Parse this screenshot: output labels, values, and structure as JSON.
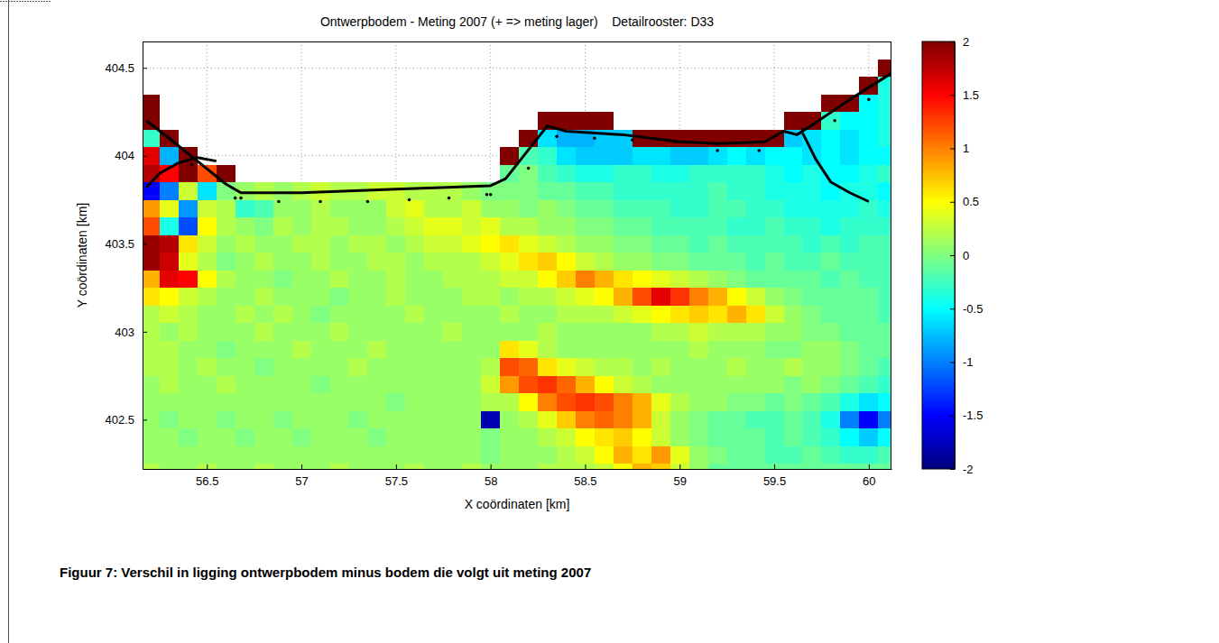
{
  "chart_data": {
    "type": "heatmap",
    "title": "Ontwerpbodem - Meting 2007 (+ => meting lager)    Detailrooster: D33",
    "x_label": "X coördinaten [km]",
    "y_label": "Y coördinaten [km]",
    "caption": "Figuur 7: Verschil in ligging ontwerpbodem minus bodem die volgt uit meting 2007",
    "xlim": [
      56.16,
      60.12
    ],
    "ylim": [
      402.22,
      404.65
    ],
    "xticks": [
      56.5,
      57,
      57.5,
      58,
      58.5,
      59,
      59.5,
      60
    ],
    "yticks": [
      402.5,
      403,
      403.5,
      404,
      404.5
    ],
    "grid": true,
    "colorbar": {
      "lim": [
        -2,
        2
      ],
      "ticks": [
        -2,
        -1.5,
        -1,
        -0.5,
        0,
        0.5,
        1,
        1.5,
        2
      ]
    },
    "x": [
      56.2,
      56.3,
      56.4,
      56.5,
      56.6,
      56.7,
      56.8,
      56.9,
      57.0,
      57.1,
      57.2,
      57.3,
      57.4,
      57.5,
      57.6,
      57.7,
      57.8,
      57.9,
      58.0,
      58.1,
      58.2,
      58.3,
      58.4,
      58.5,
      58.6,
      58.7,
      58.8,
      58.9,
      59.0,
      59.1,
      59.2,
      59.3,
      59.4,
      59.5,
      59.6,
      59.7,
      59.8,
      59.9,
      60.0,
      60.1
    ],
    "y": [
      404.6,
      404.5,
      404.4,
      404.3,
      404.2,
      404.1,
      404.0,
      403.9,
      403.8,
      403.7,
      403.6,
      403.5,
      403.4,
      403.3,
      403.2,
      403.1,
      403.0,
      402.9,
      402.8,
      402.7,
      402.6,
      402.5,
      402.4,
      402.3,
      402.2
    ],
    "z": [
      [
        null,
        null,
        null,
        null,
        null,
        null,
        null,
        null,
        null,
        null,
        null,
        null,
        null,
        null,
        null,
        null,
        null,
        null,
        null,
        null,
        null,
        null,
        null,
        null,
        null,
        null,
        null,
        null,
        null,
        null,
        null,
        null,
        null,
        null,
        null,
        null,
        null,
        null,
        null,
        null
      ],
      [
        null,
        null,
        null,
        null,
        null,
        null,
        null,
        null,
        null,
        null,
        null,
        null,
        null,
        null,
        null,
        null,
        null,
        null,
        null,
        null,
        null,
        null,
        null,
        null,
        null,
        null,
        null,
        null,
        null,
        null,
        null,
        null,
        null,
        null,
        null,
        null,
        null,
        null,
        null,
        2
      ],
      [
        null,
        null,
        null,
        null,
        null,
        null,
        null,
        null,
        null,
        null,
        null,
        null,
        null,
        null,
        null,
        null,
        null,
        null,
        null,
        null,
        null,
        null,
        null,
        null,
        null,
        null,
        null,
        null,
        null,
        null,
        null,
        null,
        null,
        null,
        null,
        null,
        null,
        null,
        2,
        -0.4
      ],
      [
        2,
        null,
        null,
        null,
        null,
        null,
        null,
        null,
        null,
        null,
        null,
        null,
        null,
        null,
        null,
        null,
        null,
        null,
        null,
        null,
        null,
        null,
        null,
        null,
        null,
        null,
        null,
        null,
        null,
        null,
        null,
        null,
        null,
        null,
        null,
        null,
        2,
        2,
        -0.5,
        -0.4
      ],
      [
        2,
        null,
        null,
        null,
        null,
        null,
        null,
        null,
        null,
        null,
        null,
        null,
        null,
        null,
        null,
        null,
        null,
        null,
        null,
        null,
        null,
        2,
        2,
        2,
        2,
        null,
        null,
        null,
        null,
        null,
        null,
        null,
        null,
        null,
        2,
        2,
        -0.3,
        -0.5,
        -0.5,
        -0.4
      ],
      [
        -0.3,
        2,
        null,
        null,
        null,
        null,
        null,
        null,
        null,
        null,
        null,
        null,
        null,
        null,
        null,
        null,
        null,
        null,
        null,
        null,
        2,
        -0.6,
        -0.8,
        -0.8,
        -0.7,
        -0.7,
        2,
        2,
        2,
        2,
        2,
        2,
        2,
        2,
        -0.7,
        -0.6,
        -0.5,
        -0.6,
        -0.5,
        -0.4
      ],
      [
        1.6,
        -0.8,
        2,
        null,
        null,
        null,
        null,
        null,
        null,
        null,
        null,
        null,
        null,
        null,
        null,
        null,
        null,
        null,
        null,
        2,
        -0.2,
        -0.3,
        -0.6,
        -0.7,
        -0.7,
        -0.7,
        -0.6,
        -0.6,
        -0.7,
        -0.7,
        -0.6,
        -0.5,
        -0.6,
        -0.5,
        -0.5,
        -0.6,
        -0.5,
        -0.6,
        -0.5,
        -0.5
      ],
      [
        1.8,
        1.5,
        2,
        1.2,
        2,
        null,
        null,
        null,
        null,
        null,
        null,
        null,
        null,
        null,
        null,
        null,
        null,
        null,
        null,
        -0.1,
        0.0,
        -0.2,
        -0.3,
        -0.4,
        -0.4,
        -0.3,
        -0.3,
        -0.4,
        -0.4,
        -0.3,
        -0.3,
        -0.3,
        -0.3,
        -0.4,
        -0.5,
        -0.4,
        -0.5,
        -0.5,
        -0.4,
        -0.3
      ],
      [
        -1.5,
        -1.0,
        0.3,
        -0.6,
        0.0,
        0.1,
        0.2,
        0.1,
        0.2,
        0.3,
        0.2,
        0.2,
        0.3,
        0.3,
        0.2,
        0.2,
        0.2,
        0.1,
        0.0,
        0.0,
        0.0,
        -0.1,
        -0.1,
        -0.2,
        -0.2,
        -0.3,
        -0.3,
        -0.3,
        -0.3,
        -0.3,
        -0.2,
        -0.3,
        -0.3,
        -0.4,
        -0.4,
        -0.4,
        -0.5,
        -0.4,
        -0.4,
        -0.5
      ],
      [
        0.9,
        0.4,
        -0.9,
        0.3,
        0.2,
        -0.3,
        -0.2,
        0.1,
        0.1,
        0.2,
        0.1,
        0.1,
        0.1,
        0.3,
        0.4,
        0.2,
        0.2,
        0.3,
        0.1,
        0.1,
        0.0,
        0.1,
        0.0,
        -0.1,
        -0.1,
        -0.2,
        -0.2,
        -0.2,
        -0.3,
        -0.3,
        -0.2,
        -0.2,
        -0.3,
        -0.3,
        -0.4,
        -0.4,
        -0.4,
        -0.4,
        -0.3,
        -0.4
      ],
      [
        1.2,
        -0.4,
        -1.2,
        0.5,
        0.2,
        0.1,
        0.0,
        0.2,
        0.1,
        0.2,
        0.2,
        0.1,
        0.1,
        0.2,
        0.3,
        0.4,
        0.4,
        0.3,
        0.4,
        0.2,
        0.2,
        0.1,
        0.1,
        0.0,
        0.0,
        -0.1,
        -0.1,
        -0.2,
        -0.2,
        -0.2,
        -0.2,
        -0.3,
        -0.3,
        -0.2,
        -0.3,
        -0.3,
        -0.4,
        -0.3,
        -0.3,
        -0.3
      ],
      [
        1.9,
        1.8,
        0.6,
        0.3,
        0.1,
        0.2,
        0.1,
        0.1,
        0.2,
        0.2,
        0.1,
        0.2,
        0.2,
        0.1,
        0.2,
        0.3,
        0.3,
        0.4,
        0.5,
        0.6,
        0.4,
        0.3,
        0.2,
        0.1,
        0.1,
        0.0,
        0.0,
        -0.1,
        -0.1,
        -0.2,
        -0.1,
        -0.2,
        -0.2,
        -0.2,
        -0.2,
        -0.3,
        -0.2,
        -0.3,
        -0.2,
        -0.2
      ],
      [
        1.9,
        1.7,
        0.4,
        0.2,
        0.0,
        0.1,
        0.2,
        0.1,
        0.1,
        0.2,
        0.1,
        0.1,
        0.2,
        0.2,
        0.1,
        0.2,
        0.2,
        0.2,
        0.3,
        0.4,
        0.6,
        0.7,
        0.5,
        0.3,
        0.2,
        0.1,
        0.1,
        0.0,
        0.0,
        -0.1,
        -0.1,
        -0.1,
        -0.2,
        -0.1,
        -0.2,
        -0.2,
        -0.1,
        -0.2,
        -0.2,
        -0.2
      ],
      [
        0.8,
        1.6,
        1.5,
        0.5,
        0.2,
        0.1,
        0.1,
        0.0,
        0.1,
        0.1,
        0.2,
        0.1,
        0.1,
        0.2,
        0.1,
        0.1,
        0.2,
        0.2,
        0.2,
        0.3,
        0.3,
        0.5,
        0.7,
        1.0,
        0.8,
        0.6,
        0.5,
        0.4,
        0.3,
        0.2,
        0.1,
        0.0,
        -0.1,
        -0.1,
        -0.1,
        -0.1,
        -0.2,
        -0.1,
        -0.2,
        -0.2
      ],
      [
        0.6,
        0.5,
        0.3,
        0.2,
        0.1,
        0.1,
        0.2,
        0.1,
        0.1,
        0.1,
        0.0,
        0.1,
        0.1,
        0.2,
        0.1,
        0.1,
        0.1,
        0.2,
        0.2,
        0.1,
        0.2,
        0.2,
        0.3,
        0.4,
        0.5,
        0.8,
        1.2,
        1.6,
        1.3,
        1.0,
        0.8,
        0.5,
        0.3,
        0.1,
        0.0,
        -0.1,
        -0.1,
        -0.1,
        -0.1,
        -0.2
      ],
      [
        0.2,
        0.3,
        0.2,
        0.1,
        0.1,
        0.2,
        0.1,
        0.2,
        0.1,
        0.0,
        0.1,
        0.1,
        0.1,
        0.1,
        0.2,
        0.1,
        0.1,
        0.1,
        0.1,
        0.2,
        0.1,
        0.1,
        0.2,
        0.2,
        0.2,
        0.3,
        0.4,
        0.5,
        0.6,
        0.7,
        0.6,
        0.8,
        0.6,
        0.3,
        0.1,
        0.0,
        -0.1,
        -0.1,
        -0.1,
        -0.2
      ],
      [
        0.2,
        0.1,
        0.2,
        0.1,
        0.1,
        0.1,
        0.2,
        0.1,
        0.1,
        0.1,
        0.2,
        0.1,
        0.1,
        0.1,
        0.1,
        0.1,
        0.2,
        0.1,
        0.1,
        0.1,
        0.1,
        0.2,
        0.1,
        0.1,
        0.1,
        0.1,
        0.1,
        0.2,
        0.2,
        0.3,
        0.2,
        0.2,
        0.2,
        0.1,
        0.1,
        0.0,
        0.0,
        -0.1,
        -0.1,
        -0.1
      ],
      [
        0.2,
        0.2,
        0.1,
        0.1,
        0.0,
        0.1,
        0.1,
        0.1,
        0.2,
        0.1,
        0.1,
        0.1,
        0.2,
        0.1,
        0.1,
        0.1,
        0.1,
        0.1,
        0.1,
        0.6,
        0.4,
        0.2,
        0.1,
        0.1,
        0.1,
        0.1,
        0.1,
        0.1,
        0.1,
        0.2,
        0.1,
        0.1,
        0.1,
        0.0,
        0.0,
        0.1,
        0.1,
        0.0,
        -0.1,
        -0.1
      ],
      [
        0.2,
        0.2,
        0.1,
        0.2,
        0.1,
        0.1,
        0.0,
        0.1,
        0.1,
        0.1,
        0.1,
        0.2,
        0.1,
        0.1,
        0.1,
        0.1,
        0.1,
        0.1,
        0.2,
        1.2,
        1.1,
        0.6,
        0.4,
        0.3,
        0.2,
        0.2,
        0.1,
        0.2,
        0.1,
        0.1,
        0.1,
        0.2,
        0.1,
        0.1,
        0.2,
        0.1,
        0.1,
        0.0,
        -0.1,
        -0.2
      ],
      [
        0.1,
        0.2,
        0.1,
        0.1,
        0.2,
        0.1,
        0.1,
        0.1,
        0.1,
        0.0,
        0.1,
        0.1,
        0.1,
        0.1,
        0.1,
        0.1,
        0.1,
        0.1,
        0.3,
        0.9,
        1.2,
        1.3,
        1.1,
        0.8,
        0.5,
        0.3,
        0.2,
        0.1,
        0.1,
        0.1,
        0.1,
        0.1,
        0.1,
        0.1,
        0.0,
        0.1,
        0.0,
        -0.1,
        -0.2,
        -0.3
      ],
      [
        0.1,
        0.1,
        0.1,
        0.1,
        0.1,
        0.1,
        0.1,
        0.1,
        0.1,
        0.1,
        0.1,
        0.1,
        0.1,
        0.0,
        0.1,
        0.1,
        0.1,
        0.1,
        0.2,
        0.2,
        0.5,
        1.0,
        1.2,
        1.3,
        1.2,
        1.0,
        0.8,
        0.4,
        0.2,
        0.1,
        0.1,
        0.0,
        0.0,
        -0.1,
        0.0,
        -0.1,
        -0.2,
        -0.4,
        -0.6,
        -0.5
      ],
      [
        0.1,
        0.0,
        0.1,
        0.1,
        0.0,
        0.1,
        0.1,
        0.0,
        0.1,
        0.1,
        0.1,
        0.0,
        0.1,
        0.1,
        0.1,
        0.1,
        0.1,
        0.1,
        -1.8,
        0.1,
        0.2,
        0.4,
        0.7,
        1.0,
        1.1,
        1.0,
        0.8,
        0.3,
        0.1,
        0.0,
        -0.1,
        -0.1,
        -0.2,
        -0.2,
        -0.1,
        -0.2,
        -0.4,
        -1.0,
        -1.5,
        -1.0
      ],
      [
        0.1,
        0.1,
        0.0,
        0.1,
        0.1,
        0.0,
        0.1,
        0.1,
        0.0,
        0.1,
        0.1,
        0.1,
        0.0,
        0.1,
        0.1,
        0.1,
        0.1,
        0.1,
        0.0,
        0.1,
        0.1,
        0.2,
        0.3,
        0.5,
        0.6,
        0.7,
        0.5,
        0.3,
        0.1,
        0.0,
        -0.1,
        -0.1,
        -0.1,
        -0.2,
        -0.1,
        -0.2,
        -0.3,
        -0.5,
        -0.7,
        -0.5
      ],
      [
        0.1,
        0.1,
        0.1,
        0.1,
        0.1,
        0.1,
        0.1,
        0.1,
        0.1,
        0.1,
        0.1,
        0.1,
        0.1,
        0.1,
        0.1,
        0.1,
        0.1,
        0.1,
        0.0,
        0.1,
        0.1,
        0.1,
        0.2,
        0.3,
        0.5,
        0.8,
        0.6,
        0.9,
        0.4,
        0.1,
        0.0,
        -0.1,
        -0.1,
        -0.2,
        -0.2,
        -0.1,
        -0.2,
        -0.3,
        -0.3,
        -0.2
      ],
      [
        0.2,
        0.1,
        0.1,
        0.2,
        0.1,
        0.1,
        0.2,
        0.1,
        0.1,
        0.1,
        0.2,
        0.1,
        0.1,
        0.1,
        0.2,
        0.1,
        0.1,
        0.2,
        0.1,
        0.1,
        0.1,
        0.2,
        0.2,
        0.2,
        0.3,
        0.5,
        0.8,
        0.7,
        0.3,
        0.1,
        -0.1,
        -0.1,
        -0.1,
        -0.1,
        -0.1,
        -0.1,
        -0.1,
        -0.1,
        -0.1,
        -0.1
      ]
    ],
    "series": [
      {
        "type": "line",
        "color": "#000000",
        "line_style": "solid",
        "x": [
          56.18,
          56.3,
          56.45,
          56.6,
          56.68,
          57.0,
          57.5,
          58.0,
          58.08,
          58.3,
          58.4,
          58.7,
          58.85,
          59.0,
          59.2,
          59.45,
          59.55,
          59.62,
          59.68,
          59.9,
          60.12
        ],
        "y": [
          404.2,
          404.1,
          403.97,
          403.84,
          403.79,
          403.79,
          403.81,
          403.83,
          403.87,
          404.17,
          404.14,
          404.12,
          404.1,
          404.08,
          404.07,
          404.08,
          404.14,
          404.12,
          404.16,
          404.32,
          404.47
        ]
      },
      {
        "type": "line",
        "color": "#000000",
        "line_style": "solid",
        "x": [
          56.18,
          56.25,
          56.35,
          56.45,
          56.55
        ],
        "y": [
          403.82,
          403.9,
          403.96,
          403.99,
          403.97
        ]
      },
      {
        "type": "line",
        "color": "#000000",
        "line_style": "solid",
        "x": [
          59.65,
          59.72,
          59.8,
          59.9,
          60.0
        ],
        "y": [
          404.13,
          403.98,
          403.85,
          403.79,
          403.74
        ]
      },
      {
        "type": "scatter",
        "color": "#000000",
        "marker": "dot",
        "x": [
          56.42,
          56.65,
          56.68,
          56.88,
          57.1,
          57.35,
          57.57,
          57.78,
          57.98,
          58.0,
          58.2,
          58.35,
          58.55,
          58.75,
          58.98,
          59.2,
          59.42,
          59.65,
          59.82,
          60.0
        ],
        "y": [
          403.95,
          403.76,
          403.76,
          403.74,
          403.74,
          403.74,
          403.75,
          403.76,
          403.78,
          403.78,
          403.93,
          404.11,
          404.1,
          404.09,
          404.08,
          404.03,
          404.03,
          404.15,
          404.2,
          404.32
        ]
      }
    ]
  }
}
